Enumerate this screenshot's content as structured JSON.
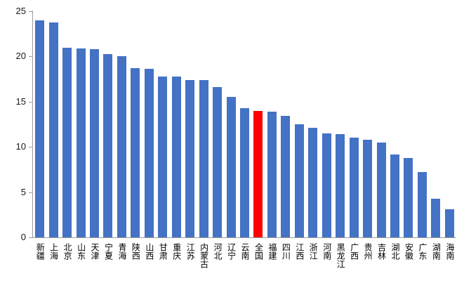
{
  "chart_data": {
    "type": "bar",
    "title": "",
    "xlabel": "",
    "ylabel": "",
    "categories": [
      "新疆",
      "上海",
      "北京",
      "山东",
      "天津",
      "宁夏",
      "青海",
      "陕西",
      "山西",
      "甘肃",
      "重庆",
      "江苏",
      "内蒙古",
      "河北",
      "辽宁",
      "云南",
      "全国",
      "福建",
      "四川",
      "江西",
      "浙江",
      "河南",
      "黑龙江",
      "广西",
      "贵州",
      "吉林",
      "湖北",
      "安徽",
      "广东",
      "湖南",
      "海南"
    ],
    "values": [
      24.0,
      23.8,
      21.0,
      20.9,
      20.8,
      20.3,
      20.0,
      18.7,
      18.6,
      17.8,
      17.8,
      17.4,
      17.4,
      16.6,
      15.5,
      14.3,
      14.0,
      13.9,
      13.4,
      12.5,
      12.1,
      11.5,
      11.4,
      11.0,
      10.8,
      10.5,
      9.2,
      8.8,
      7.2,
      4.3,
      3.1
    ],
    "highlight_category": "全国",
    "bar_color": "#4472C4",
    "highlight_color": "#FF0000",
    "axis_color": "#9d9d9d",
    "text_color": "#1a1a1a",
    "ylim": [
      0,
      25
    ],
    "yticks": [
      0,
      5,
      10,
      15,
      20,
      25
    ],
    "grid": false,
    "legend": "none"
  }
}
